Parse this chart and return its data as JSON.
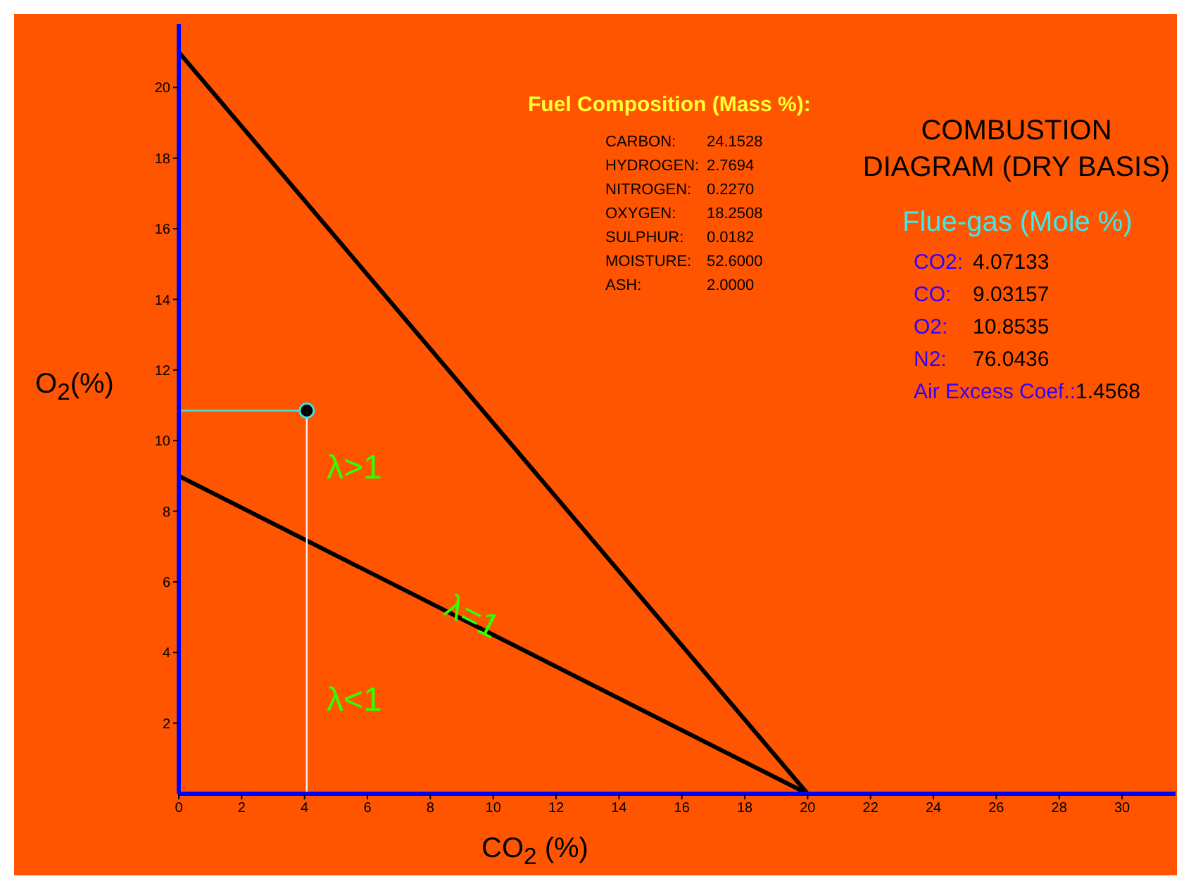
{
  "chart_data": {
    "type": "line",
    "title": "COMBUSTION DIAGRAM (DRY BASIS)",
    "xlabel": "CO$_{2}$ (%)",
    "ylabel": "O$_{2}$(%)",
    "xlim": [
      0,
      31.7
    ],
    "ylim": [
      0,
      21.8
    ],
    "xticks": [
      0,
      2,
      4,
      6,
      8,
      10,
      12,
      14,
      16,
      18,
      20,
      22,
      24,
      26,
      28,
      30
    ],
    "yticks": [
      2,
      4,
      6,
      8,
      10,
      12,
      14,
      16,
      18,
      20
    ],
    "marker": "none",
    "series": [
      {
        "color": "#000000",
        "x": [
          0,
          20
        ],
        "values": [
          21,
          0
        ]
      },
      {
        "color": "#000000",
        "x": [
          0,
          20
        ],
        "values": [
          9,
          0
        ]
      },
      {
        "color": "#40e0e0",
        "x": [
          0,
          4.07
        ],
        "values": [
          10.85,
          10.85
        ]
      },
      {
        "color": "#f0f0f0",
        "x": [
          4.07,
          4.07
        ],
        "values": [
          10.85,
          0
        ]
      },
      {
        "type": "scatter",
        "color": "#000000",
        "marker": "circle",
        "x": [
          4.07
        ],
        "values": [
          10.85
        ]
      }
    ],
    "annotations": [
      {
        "text": "λ=1",
        "x": 9.3,
        "y": 4.9
      },
      "λ>1",
      "λ<1",
      "Fuel Composition (Mass %):",
      "CARBON: 24.1528",
      "HYDROGEN: 2.7694",
      "NITROGEN: 0.2270",
      "OXYGEN: 18.2508",
      "SULPHUR: 0.0182",
      "MOISTURE: 52.6000",
      "ASH: 2.0000",
      "Flue-gas (Mole %)",
      "CO2: 4.07133",
      "CO: 9.03157",
      "O2: 10.8535",
      "N2: 76.0436",
      "Air Excess Coef.:1.4568"
    ]
  }
}
